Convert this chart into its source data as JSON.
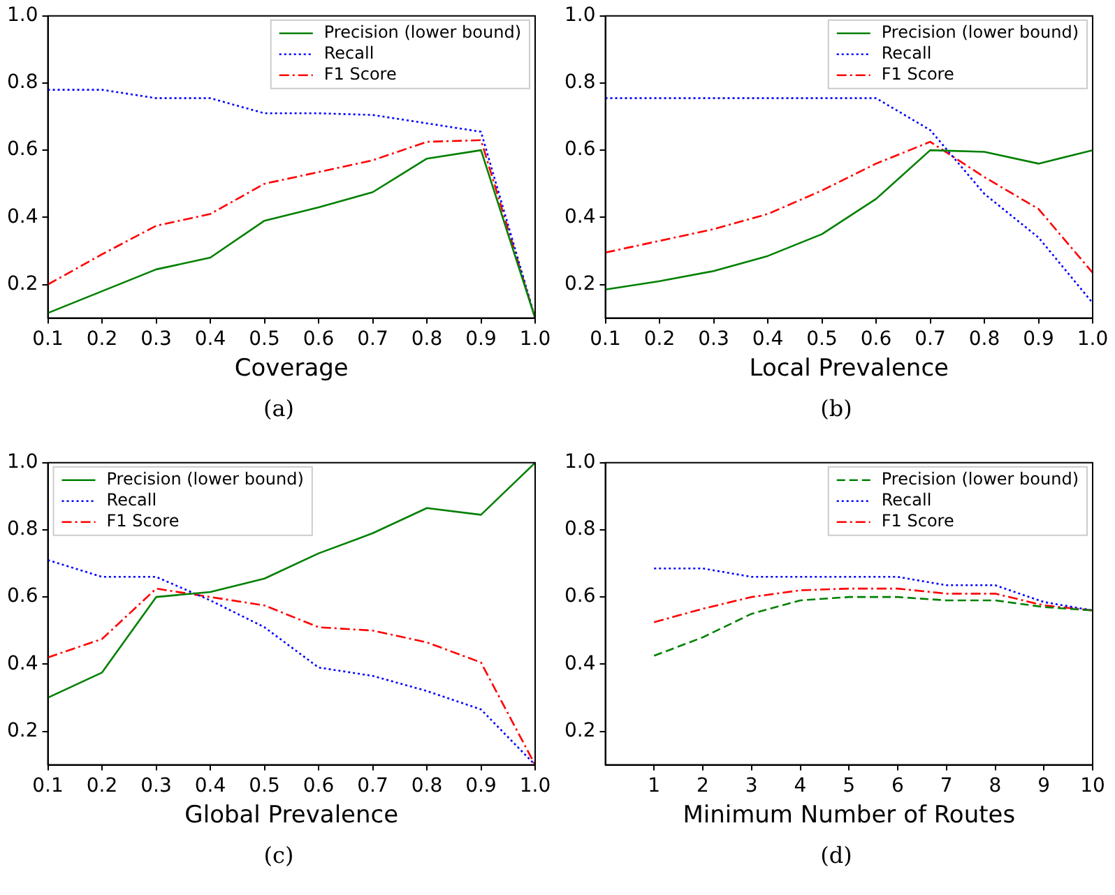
{
  "chart_data": [
    {
      "type": "line",
      "xlabel": "Coverage",
      "annotations": [
        "(a)"
      ],
      "legend": "top right",
      "grid": false,
      "marker": "none",
      "xlim": [
        0.1,
        1.0
      ],
      "xticks": [
        {
          "value": 0.1,
          "label": "0.1"
        },
        {
          "value": 0.2,
          "label": "0.2"
        },
        {
          "value": 0.3,
          "label": "0.3"
        },
        {
          "value": 0.4,
          "label": "0.4"
        },
        {
          "value": 0.5,
          "label": "0.5"
        },
        {
          "value": 0.6,
          "label": "0.6"
        },
        {
          "value": 0.7,
          "label": "0.7"
        },
        {
          "value": 0.8,
          "label": "0.8"
        },
        {
          "value": 0.9,
          "label": "0.9"
        },
        {
          "value": 1.0,
          "label": "1.0"
        }
      ],
      "ylim": [
        0.1,
        1.0
      ],
      "yticks": [
        {
          "value": 0.2,
          "label": "0.2"
        },
        {
          "value": 0.4,
          "label": "0.4"
        },
        {
          "value": 0.6,
          "label": "0.6"
        },
        {
          "value": 0.8,
          "label": "0.8"
        },
        {
          "value": 1.0,
          "label": "1.0"
        }
      ],
      "x": [
        0.1,
        0.2,
        0.3,
        0.4,
        0.5,
        0.6,
        0.7,
        0.8,
        0.9,
        1.0
      ],
      "series": [
        {
          "name": "Precision (lower bound)",
          "color": "#008000",
          "line_style": "solid",
          "values": [
            0.115,
            0.18,
            0.245,
            0.28,
            0.39,
            0.43,
            0.475,
            0.575,
            0.6,
            0.1
          ]
        },
        {
          "name": "Recall",
          "color": "#0000ff",
          "line_style": "dotted",
          "values": [
            0.78,
            0.78,
            0.755,
            0.755,
            0.71,
            0.71,
            0.705,
            0.68,
            0.655,
            0.1
          ]
        },
        {
          "name": "F1 Score",
          "color": "#ff0000",
          "line_style": "dashdot",
          "values": [
            0.2,
            0.29,
            0.375,
            0.41,
            0.5,
            0.535,
            0.57,
            0.625,
            0.63,
            0.1
          ]
        }
      ]
    },
    {
      "type": "line",
      "xlabel": "Local Prevalence",
      "annotations": [
        "(b)"
      ],
      "legend": "top right",
      "grid": false,
      "marker": "none",
      "xlim": [
        0.1,
        1.0
      ],
      "xticks": [
        {
          "value": 0.1,
          "label": "0.1"
        },
        {
          "value": 0.2,
          "label": "0.2"
        },
        {
          "value": 0.3,
          "label": "0.3"
        },
        {
          "value": 0.4,
          "label": "0.4"
        },
        {
          "value": 0.5,
          "label": "0.5"
        },
        {
          "value": 0.6,
          "label": "0.6"
        },
        {
          "value": 0.7,
          "label": "0.7"
        },
        {
          "value": 0.8,
          "label": "0.8"
        },
        {
          "value": 0.9,
          "label": "0.9"
        },
        {
          "value": 1.0,
          "label": "1.0"
        }
      ],
      "ylim": [
        0.1,
        1.0
      ],
      "yticks": [
        {
          "value": 0.2,
          "label": "0.2"
        },
        {
          "value": 0.4,
          "label": "0.4"
        },
        {
          "value": 0.6,
          "label": "0.6"
        },
        {
          "value": 0.8,
          "label": "0.8"
        },
        {
          "value": 1.0,
          "label": "1.0"
        }
      ],
      "x": [
        0.1,
        0.2,
        0.3,
        0.4,
        0.5,
        0.6,
        0.7,
        0.8,
        0.9,
        1.0
      ],
      "series": [
        {
          "name": "Precision (lower bound)",
          "color": "#008000",
          "line_style": "solid",
          "values": [
            0.185,
            0.21,
            0.24,
            0.285,
            0.35,
            0.455,
            0.6,
            0.595,
            0.56,
            0.6
          ]
        },
        {
          "name": "Recall",
          "color": "#0000ff",
          "line_style": "dotted",
          "values": [
            0.755,
            0.755,
            0.755,
            0.755,
            0.755,
            0.755,
            0.66,
            0.47,
            0.34,
            0.145
          ]
        },
        {
          "name": "F1 Score",
          "color": "#ff0000",
          "line_style": "dashdot",
          "values": [
            0.295,
            0.33,
            0.365,
            0.41,
            0.48,
            0.56,
            0.625,
            0.52,
            0.425,
            0.235
          ]
        }
      ]
    },
    {
      "type": "line",
      "xlabel": "Global Prevalence",
      "annotations": [
        "(c)"
      ],
      "legend": "top left",
      "grid": false,
      "marker": "none",
      "xlim": [
        0.1,
        1.0
      ],
      "xticks": [
        {
          "value": 0.1,
          "label": "0.1"
        },
        {
          "value": 0.2,
          "label": "0.2"
        },
        {
          "value": 0.3,
          "label": "0.3"
        },
        {
          "value": 0.4,
          "label": "0.4"
        },
        {
          "value": 0.5,
          "label": "0.5"
        },
        {
          "value": 0.6,
          "label": "0.6"
        },
        {
          "value": 0.7,
          "label": "0.7"
        },
        {
          "value": 0.8,
          "label": "0.8"
        },
        {
          "value": 0.9,
          "label": "0.9"
        },
        {
          "value": 1.0,
          "label": "1.0"
        }
      ],
      "ylim": [
        0.1,
        1.0
      ],
      "yticks": [
        {
          "value": 0.2,
          "label": "0.2"
        },
        {
          "value": 0.4,
          "label": "0.4"
        },
        {
          "value": 0.6,
          "label": "0.6"
        },
        {
          "value": 0.8,
          "label": "0.8"
        },
        {
          "value": 1.0,
          "label": "1.0"
        }
      ],
      "x": [
        0.1,
        0.2,
        0.3,
        0.4,
        0.5,
        0.6,
        0.7,
        0.8,
        0.9,
        1.0
      ],
      "series": [
        {
          "name": "Precision (lower bound)",
          "color": "#008000",
          "line_style": "solid",
          "values": [
            0.3,
            0.375,
            0.6,
            0.615,
            0.655,
            0.73,
            0.79,
            0.865,
            0.845,
            1.0
          ]
        },
        {
          "name": "Recall",
          "color": "#0000ff",
          "line_style": "dotted",
          "values": [
            0.71,
            0.66,
            0.66,
            0.59,
            0.51,
            0.39,
            0.365,
            0.32,
            0.265,
            0.1
          ]
        },
        {
          "name": "F1 Score",
          "color": "#ff0000",
          "line_style": "dashdot",
          "values": [
            0.42,
            0.475,
            0.625,
            0.6,
            0.575,
            0.51,
            0.5,
            0.465,
            0.405,
            0.1
          ]
        }
      ]
    },
    {
      "type": "line",
      "xlabel": "Minimum Number of Routes",
      "annotations": [
        "(d)"
      ],
      "legend": "top right",
      "grid": false,
      "marker": "none",
      "xlim": [
        0,
        10
      ],
      "xticks": [
        1,
        2,
        3,
        4,
        5,
        6,
        7,
        8,
        9,
        10
      ],
      "ylim": [
        0.1,
        1.0
      ],
      "yticks": [
        {
          "value": 0.2,
          "label": "0.2"
        },
        {
          "value": 0.4,
          "label": "0.4"
        },
        {
          "value": 0.6,
          "label": "0.6"
        },
        {
          "value": 0.8,
          "label": "0.8"
        },
        {
          "value": 1.0,
          "label": "1.0"
        }
      ],
      "x": [
        1,
        2,
        3,
        4,
        5,
        6,
        7,
        8,
        9,
        10
      ],
      "series": [
        {
          "name": "Precision (lower bound)",
          "color": "#008000",
          "line_style": "dashed",
          "values": [
            0.425,
            0.48,
            0.55,
            0.59,
            0.6,
            0.6,
            0.59,
            0.59,
            0.57,
            0.56
          ]
        },
        {
          "name": "Recall",
          "color": "#0000ff",
          "line_style": "dotted",
          "values": [
            0.685,
            0.685,
            0.66,
            0.66,
            0.66,
            0.66,
            0.635,
            0.635,
            0.585,
            0.56
          ]
        },
        {
          "name": "F1 Score",
          "color": "#ff0000",
          "line_style": "dashdot",
          "values": [
            0.525,
            0.565,
            0.6,
            0.62,
            0.625,
            0.625,
            0.61,
            0.61,
            0.575,
            0.56
          ]
        }
      ]
    }
  ]
}
